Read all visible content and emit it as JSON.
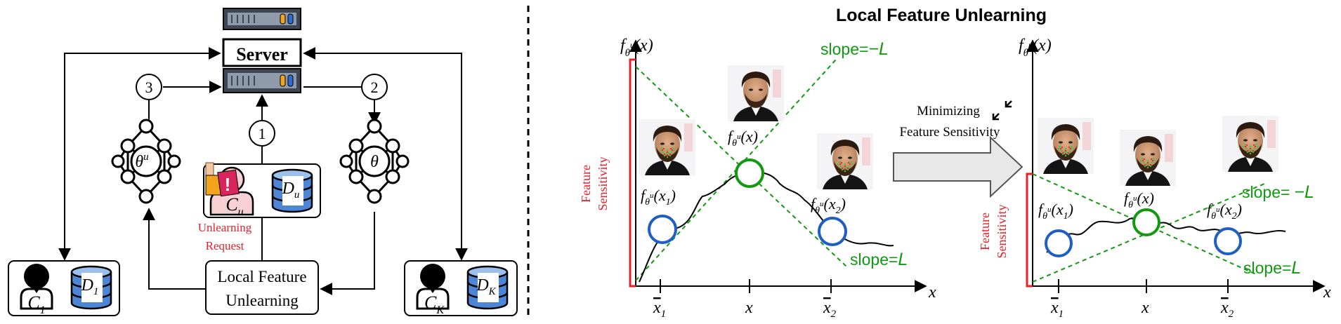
{
  "colors": {
    "green": "#119911",
    "red": "#e8202a",
    "blue": "#1f5fc4",
    "server_dark": "#3d4756",
    "server_light": "#8f9bab",
    "db_blue": "#4d86d4",
    "arrow_fill": "#e8e8e8"
  },
  "icons": [
    "server-icon",
    "neural-network-icon",
    "database-icon",
    "user-icon",
    "alert-icon",
    "face-photo"
  ],
  "left_panel": {
    "server_label": "Server",
    "steps": [
      "3",
      "2",
      "1"
    ],
    "model_unlearned": "θ",
    "model_unlearned_sup": "u",
    "model_global": "θ",
    "target_client": {
      "name": "C",
      "sub": "u",
      "data": "D",
      "data_sub": "u"
    },
    "unlearning_request": [
      "Unlearning",
      "Request"
    ],
    "local_unlearning": [
      "Local Feature",
      "Unlearning"
    ],
    "client_first": {
      "name": "C",
      "sub": "1",
      "data": "D",
      "data_sub": "1"
    },
    "client_last": {
      "name": "C",
      "sub": "K",
      "data": "D",
      "data_sub": "K"
    }
  },
  "right_panel": {
    "title": "Local Feature Unlearning",
    "minimizing": [
      "Minimizing",
      "Feature Sensitivity"
    ],
    "left_plot": {
      "ylabel": "f",
      "ylabel_sub": "θ",
      "ylabel_sup": "u",
      "ylabel_arg": "(x)",
      "xlabel": "x",
      "slope_neg": "slope=",
      "slope_neg_val": "−L",
      "slope_pos": "slope=",
      "slope_pos_val": "L",
      "sensitivity": [
        "Feature",
        "Sensitivity"
      ],
      "ticks": [
        "x",
        "1",
        "x",
        "x",
        "2"
      ],
      "point_labels": [
        {
          "f": "f",
          "sub": "θ",
          "sup": "u",
          "arg": "(x",
          "argsub": "1",
          "close": ")"
        },
        {
          "f": "f",
          "sub": "θ",
          "sup": "u",
          "arg": "(x)"
        },
        {
          "f": "f",
          "sub": "θ",
          "sup": "u",
          "arg": "(x",
          "argsub": "2",
          "close": ")"
        }
      ]
    },
    "right_plot": {
      "ylabel": "f",
      "ylabel_sub": "θ",
      "ylabel_sup": "u",
      "ylabel_arg": "(x)",
      "xlabel": "x",
      "slope_neg": "slope=",
      "slope_neg_val": "−L",
      "slope_pos": "slope=",
      "slope_pos_val": "L",
      "sensitivity": [
        "Feature",
        "Sensitivity"
      ],
      "ticks": [
        "x",
        "1",
        "x",
        "x",
        "2"
      ],
      "point_labels": [
        {
          "f": "f",
          "sub": "θ",
          "sup": "u",
          "arg": "(x",
          "argsub": "1",
          "close": ")"
        },
        {
          "f": "f",
          "sub": "θ",
          "sup": "u",
          "arg": "(x)"
        },
        {
          "f": "f",
          "sub": "θ",
          "sup": "u",
          "arg": "(x",
          "argsub": "2",
          "close": ")"
        }
      ]
    }
  }
}
